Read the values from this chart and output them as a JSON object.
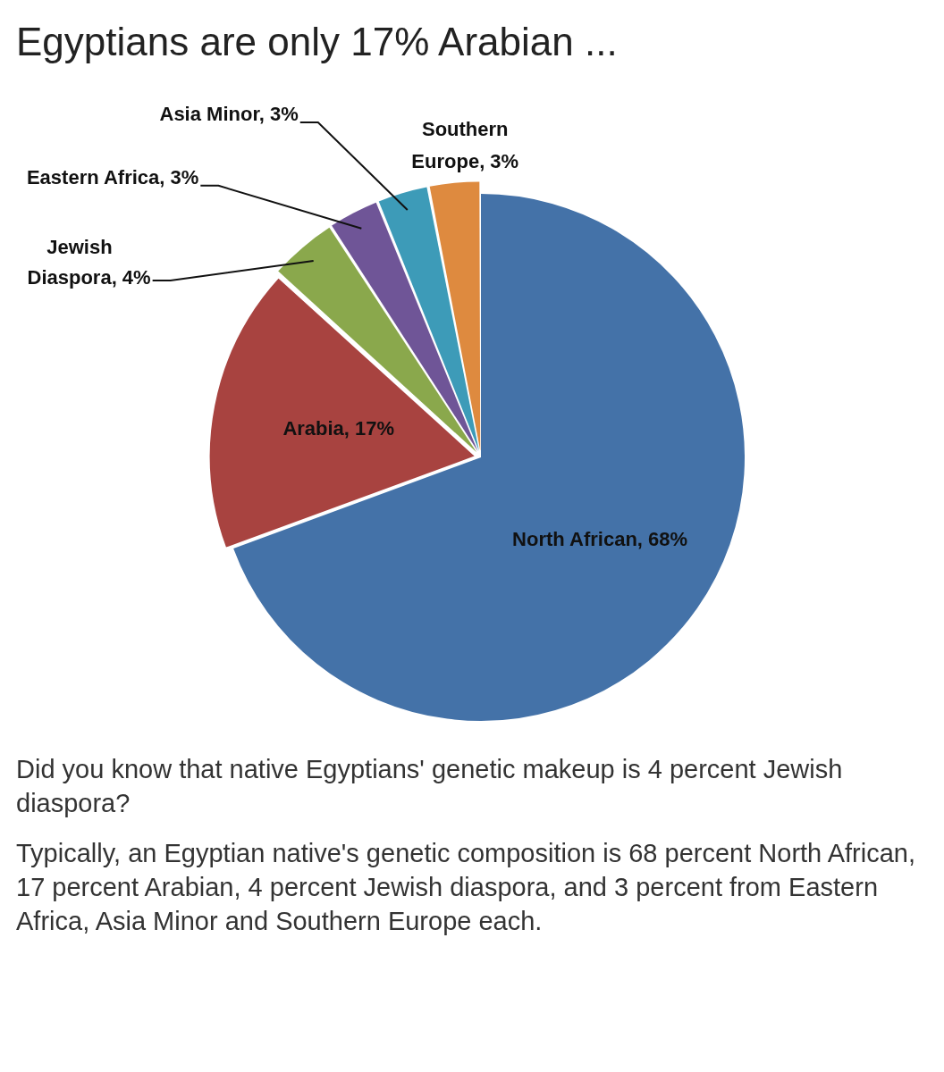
{
  "chart_data": {
    "type": "pie",
    "title": "Egyptians are only 17% Arabian ...",
    "categories": [
      "North African",
      "Arabia",
      "Jewish Diaspora",
      "Eastern Africa",
      "Asia Minor",
      "Southern Europe"
    ],
    "values": [
      68,
      17,
      4,
      3,
      3,
      3
    ],
    "value_labels": [
      "68%",
      "17%",
      "4%",
      "3%",
      "3%",
      "3%"
    ],
    "colors": [
      "#4472a8",
      "#a84340",
      "#8aa84c",
      "#6f5597",
      "#3d9bb8",
      "#de8a3f"
    ],
    "legend": false,
    "annotations": [
      "Did you know that native Egyptians' genetic makeup is 4 percent Jewish diaspora?",
      "Typically, an Egyptian native's genetic composition is 68 percent North African, 17 percent Arabian, 4 percent Jewish diaspora, and 3 percent from Eastern Africa, Asia Minor and Southern Europe each."
    ]
  }
}
